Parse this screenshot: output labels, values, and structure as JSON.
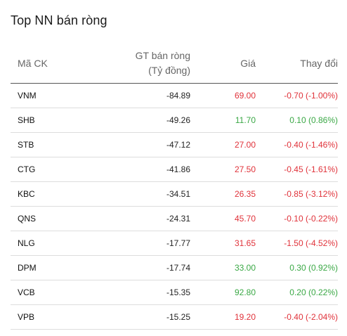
{
  "title": "Top NN bán ròng",
  "columns": {
    "code": "Mã CK",
    "value_line1": "GT bán ròng",
    "value_line2": "(Tỷ đồng)",
    "price": "Giá",
    "change": "Thay đổi"
  },
  "colors": {
    "down": "#e0323a",
    "up": "#3aa845"
  },
  "rows": [
    {
      "code": "VNM",
      "value": "-84.89",
      "price": "69.00",
      "change": "-0.70 (-1.00%)",
      "trend": "down"
    },
    {
      "code": "SHB",
      "value": "-49.26",
      "price": "11.70",
      "change": "0.10 (0.86%)",
      "trend": "up"
    },
    {
      "code": "STB",
      "value": "-47.12",
      "price": "27.00",
      "change": "-0.40 (-1.46%)",
      "trend": "down"
    },
    {
      "code": "CTG",
      "value": "-41.86",
      "price": "27.50",
      "change": "-0.45 (-1.61%)",
      "trend": "down"
    },
    {
      "code": "KBC",
      "value": "-34.51",
      "price": "26.35",
      "change": "-0.85 (-3.12%)",
      "trend": "down"
    },
    {
      "code": "QNS",
      "value": "-24.31",
      "price": "45.70",
      "change": "-0.10 (-0.22%)",
      "trend": "down"
    },
    {
      "code": "NLG",
      "value": "-17.77",
      "price": "31.65",
      "change": "-1.50 (-4.52%)",
      "trend": "down"
    },
    {
      "code": "DPM",
      "value": "-17.74",
      "price": "33.00",
      "change": "0.30 (0.92%)",
      "trend": "up"
    },
    {
      "code": "VCB",
      "value": "-15.35",
      "price": "92.80",
      "change": "0.20 (0.22%)",
      "trend": "up"
    },
    {
      "code": "VPB",
      "value": "-15.25",
      "price": "19.20",
      "change": "-0.40 (-2.04%)",
      "trend": "down"
    }
  ]
}
